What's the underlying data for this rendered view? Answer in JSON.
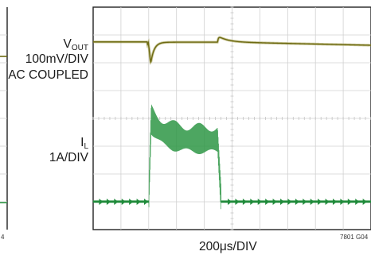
{
  "chart_data": {
    "type": "line",
    "title": "",
    "xlabel": "200μs/DIV",
    "ylabel": "",
    "grid": true,
    "divisions": {
      "x": 10,
      "y": 8
    },
    "series": [
      {
        "name": "V_OUT",
        "label": {
          "main": "V",
          "sub": "OUT",
          "line2": "100mV/DIV",
          "line3": "AC COUPLED"
        },
        "color": "#6d6a12",
        "x": [
          0,
          1,
          2,
          3,
          4,
          5,
          6,
          7,
          8,
          9,
          10
        ],
        "y": [
          6.75,
          6.75,
          6.55,
          6.02,
          6.73,
          6.95,
          6.81,
          6.76,
          6.72,
          6.67,
          6.63
        ]
      },
      {
        "name": "I_L",
        "label": {
          "main": "I",
          "sub": "L",
          "line2": "1A/DIV"
        },
        "color": "#2e9645",
        "x": [
          0,
          1,
          2,
          3,
          4,
          5,
          6,
          7,
          8,
          9,
          10
        ],
        "y": [
          1.0,
          1.0,
          1.0,
          3.83,
          3.2,
          3.1,
          1.0,
          1.0,
          1.0,
          1.0,
          1.0
        ]
      }
    ],
    "events": {
      "step_up_x": 2.0,
      "step_down_x": 4.48
    }
  },
  "footnote_left": "4",
  "footnote_right": "7801 G04"
}
